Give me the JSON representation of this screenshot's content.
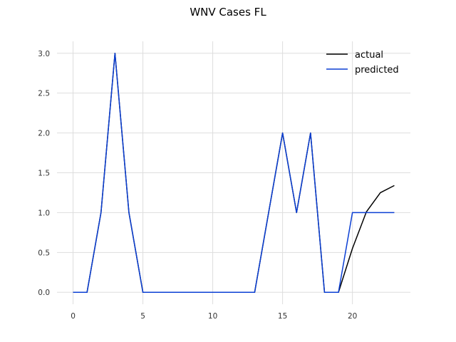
{
  "chart_data": {
    "type": "line",
    "title": "WNV Cases FL",
    "xlabel": "",
    "ylabel": "",
    "xlim": [
      -1.15,
      24.15
    ],
    "ylim": [
      -0.15,
      3.15
    ],
    "x_ticks": [
      0,
      5,
      10,
      15,
      20
    ],
    "y_ticks": [
      0.0,
      0.5,
      1.0,
      1.5,
      2.0,
      2.5,
      3.0
    ],
    "x_tick_labels": [
      "0",
      "5",
      "10",
      "15",
      "20"
    ],
    "y_tick_labels": [
      "0.0",
      "0.5",
      "1.0",
      "1.5",
      "2.0",
      "2.5",
      "3.0"
    ],
    "grid": true,
    "legend_position": "top-right",
    "series": [
      {
        "name": "actual",
        "color": "#000000",
        "x": [
          0,
          1,
          2,
          3,
          4,
          5,
          6,
          7,
          8,
          9,
          10,
          11,
          12,
          13,
          14,
          15,
          16,
          17,
          18,
          19,
          20,
          21,
          22,
          23
        ],
        "values": [
          0,
          0,
          1,
          3,
          1,
          0,
          0,
          0,
          0,
          0,
          0,
          0,
          0,
          0,
          1,
          2,
          1,
          2,
          0,
          0,
          0.55,
          1.01,
          1.25,
          1.34
        ]
      },
      {
        "name": "predicted",
        "color": "#0b3fd4",
        "x": [
          0,
          1,
          2,
          3,
          4,
          5,
          6,
          7,
          8,
          9,
          10,
          11,
          12,
          13,
          14,
          15,
          16,
          17,
          18,
          19,
          20,
          21,
          22,
          23
        ],
        "values": [
          0,
          0,
          1,
          3,
          1,
          0,
          0,
          0,
          0,
          0,
          0,
          0,
          0,
          0,
          1,
          2,
          1,
          2,
          0,
          0,
          1,
          1,
          1,
          1
        ]
      }
    ]
  }
}
